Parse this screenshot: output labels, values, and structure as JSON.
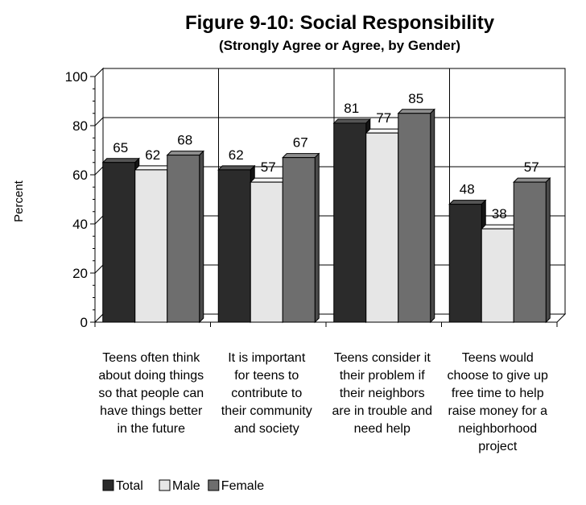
{
  "chart_data": {
    "type": "bar",
    "title": "Figure 9-10: Social Responsibility",
    "subtitle": "(Strongly Agree or Agree, by Gender)",
    "ylabel": "Percent",
    "xlabel": "",
    "ylim": [
      0,
      100
    ],
    "yticks": [
      "0",
      "20",
      "40",
      "60",
      "80",
      "100"
    ],
    "grid": true,
    "legend_position": "bottom-left",
    "categories": [
      "Teens often think about doing things so that people can have things better in the future",
      "It is important for teens to contribute to their community and society",
      "Teens consider it their problem if their neighbors are in trouble and need help",
      "Teens would choose to give up free time to help raise money for a neighborhood project"
    ],
    "category_lines": [
      [
        "Teens often think",
        "about doing things",
        "so that people can",
        "have things better",
        "in the future"
      ],
      [
        "It is important",
        "for teens to",
        "contribute to",
        "their community",
        "and society"
      ],
      [
        "Teens consider it",
        "their problem if",
        "their neighbors",
        "are in trouble and",
        "need help"
      ],
      [
        "Teens would",
        "choose to give up",
        "free time to help",
        "raise money for a",
        "neighborhood",
        "project"
      ]
    ],
    "series": [
      {
        "name": "Total",
        "color": "#2b2b2b",
        "values": [
          65,
          62,
          81,
          48
        ]
      },
      {
        "name": "Male",
        "color": "#e6e6e6",
        "values": [
          62,
          57,
          77,
          38
        ]
      },
      {
        "name": "Female",
        "color": "#6e6e6e",
        "values": [
          68,
          67,
          85,
          57
        ]
      }
    ]
  }
}
